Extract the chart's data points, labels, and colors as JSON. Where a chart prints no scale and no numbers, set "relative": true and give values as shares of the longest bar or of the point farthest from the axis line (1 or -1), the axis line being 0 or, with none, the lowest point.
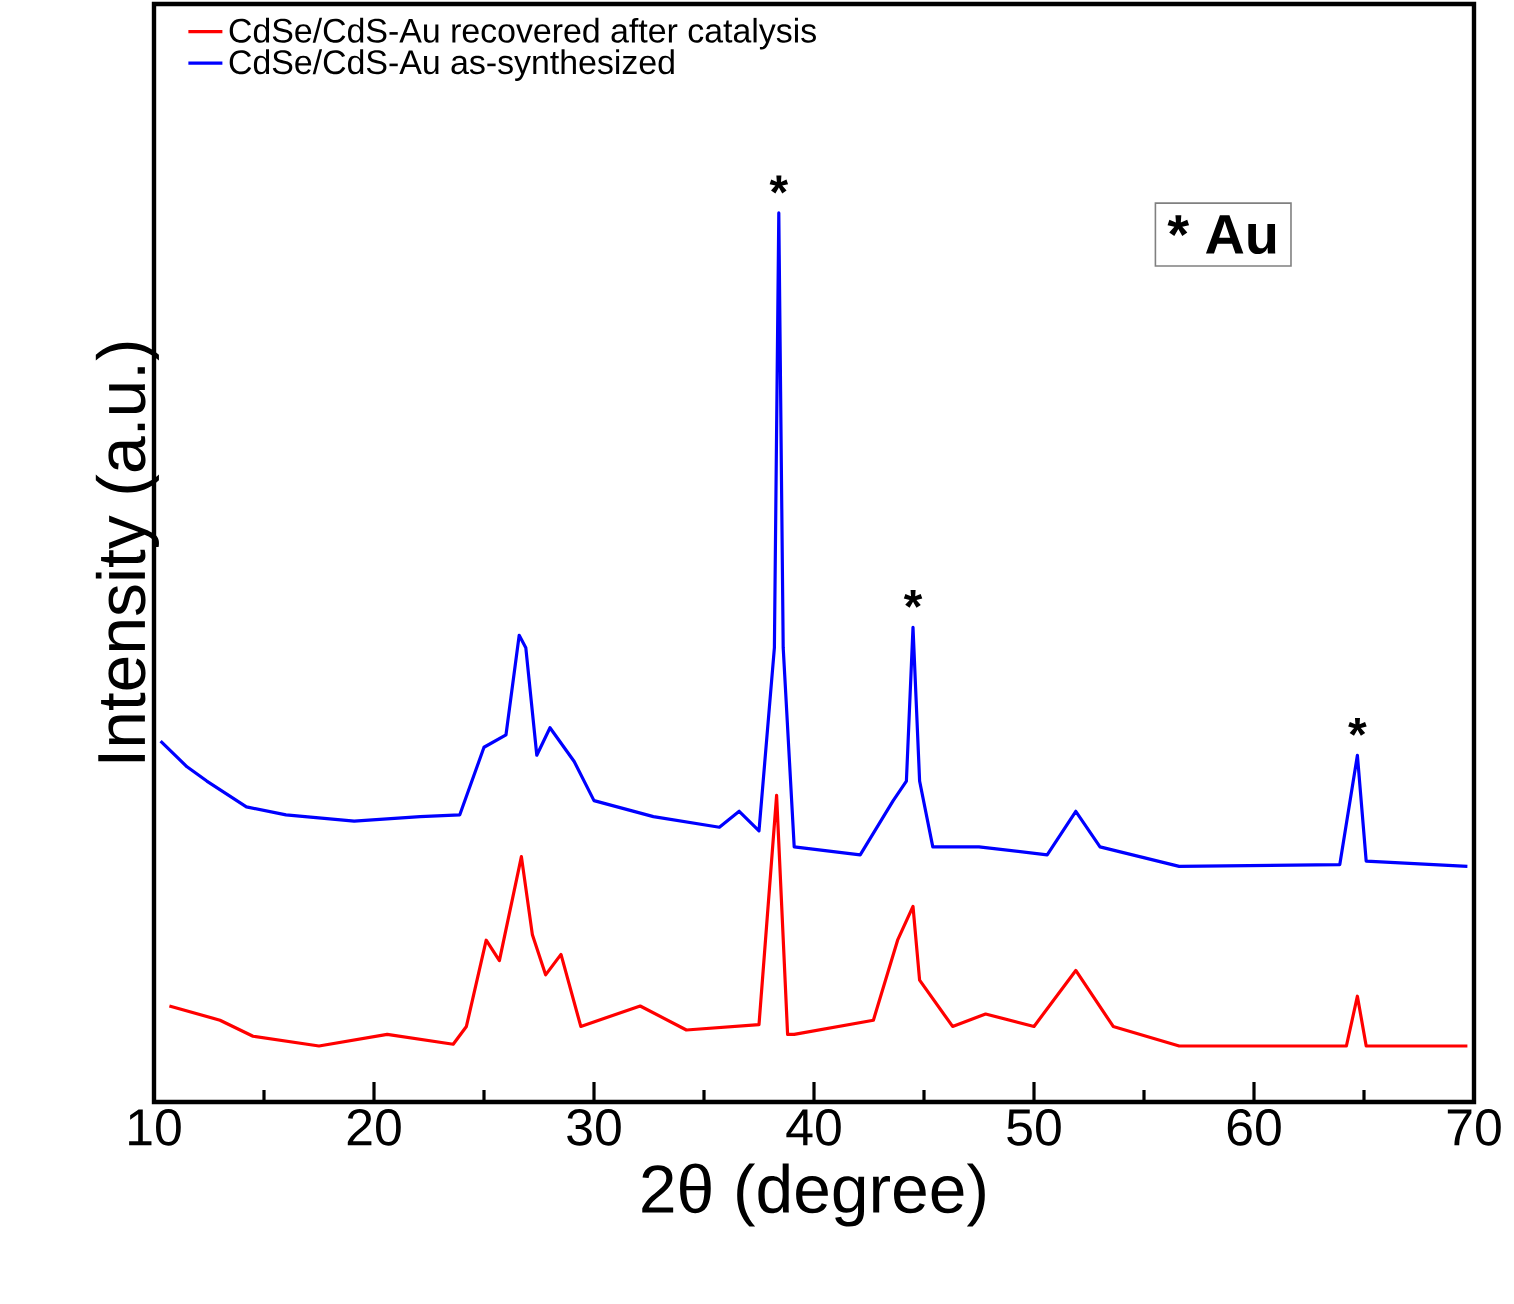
{
  "chart_data": {
    "type": "line",
    "relative": true,
    "xlabel": "2θ (degree)",
    "ylabel": "Intensity (a.u.)",
    "xlim": [
      10,
      70
    ],
    "xticks": [
      10,
      20,
      30,
      40,
      50,
      60,
      70
    ],
    "legend": "top left",
    "line_style": "solid",
    "marker": "none",
    "series": [
      {
        "name": "CdSe/CdS-Au recovered after catalysis",
        "color": "#ff0000",
        "x": [
          10.7,
          13.0,
          14.5,
          17.5,
          20.6,
          23.6,
          24.2,
          25.1,
          25.7,
          26.7,
          27.2,
          27.8,
          28.5,
          29.4,
          32.1,
          34.2,
          37.5,
          38.3,
          38.8,
          39.1,
          42.7,
          43.8,
          44.5,
          44.8,
          46.3,
          47.8,
          50.0,
          51.9,
          53.6,
          56.6,
          64.2,
          64.7,
          65.1,
          69.7
        ],
        "values": [
          0.108,
          0.092,
          0.074,
          0.063,
          0.076,
          0.065,
          0.085,
          0.182,
          0.159,
          0.276,
          0.188,
          0.143,
          0.166,
          0.085,
          0.108,
          0.081,
          0.087,
          0.345,
          0.076,
          0.076,
          0.092,
          0.182,
          0.22,
          0.137,
          0.085,
          0.099,
          0.085,
          0.148,
          0.085,
          0.063,
          0.063,
          0.119,
          0.063,
          0.063
        ]
      },
      {
        "name": "CdSe/CdS-Au as-synthesized",
        "color": "#0000ff",
        "x": [
          10.3,
          11.5,
          12.4,
          14.2,
          16.0,
          19.1,
          22.1,
          23.9,
          25.0,
          26.0,
          26.6,
          26.9,
          27.4,
          28.0,
          29.1,
          30.0,
          32.7,
          35.7,
          36.6,
          37.5,
          38.2,
          38.4,
          38.6,
          39.1,
          42.1,
          43.6,
          44.2,
          44.5,
          44.8,
          45.4,
          47.5,
          50.6,
          51.9,
          53.0,
          56.6,
          63.9,
          64.7,
          65.1,
          69.7
        ],
        "values": [
          0.406,
          0.377,
          0.361,
          0.332,
          0.323,
          0.316,
          0.321,
          0.323,
          0.399,
          0.413,
          0.525,
          0.511,
          0.39,
          0.421,
          0.383,
          0.339,
          0.321,
          0.309,
          0.327,
          0.305,
          0.511,
          1.0,
          0.511,
          0.287,
          0.278,
          0.339,
          0.361,
          0.534,
          0.361,
          0.287,
          0.287,
          0.278,
          0.327,
          0.287,
          0.265,
          0.267,
          0.39,
          0.271,
          0.265
        ]
      }
    ],
    "annotations": [
      {
        "text": "*",
        "x": 38.4,
        "y": 1.0
      },
      {
        "text": "*",
        "x": 44.5,
        "y": 0.534
      },
      {
        "text": "*",
        "x": 64.7,
        "y": 0.39
      },
      "* Au"
    ]
  }
}
